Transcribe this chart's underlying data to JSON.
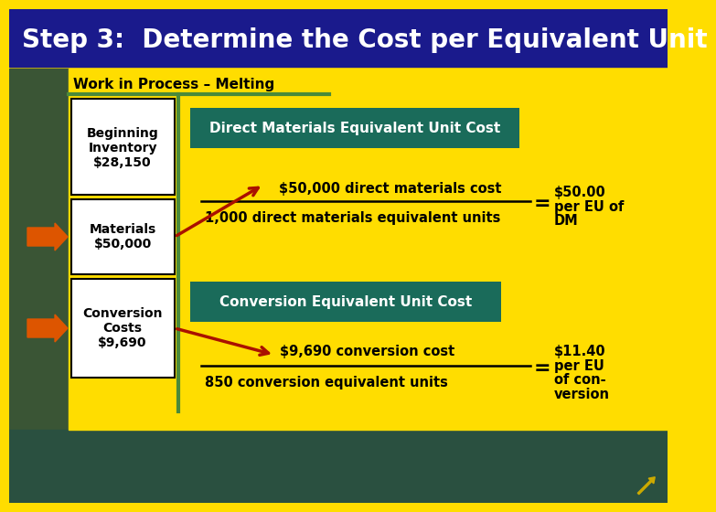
{
  "title": "Step 3:  Determine the Cost per Equivalent Unit",
  "title_bg": "#1a1a8c",
  "title_color": "#ffffff",
  "subtitle": "Work in Process – Melting",
  "subtitle_color": "#000000",
  "bg_color": "#ffdd00",
  "bg_left_color": "#3a5a30",
  "bg_bottom_color": "#2a5a50",
  "box1_label": "Beginning\nInventory\n$28,150",
  "box2_label": "Materials\n$50,000",
  "box3_label": "Conversion\nCosts\n$9,690",
  "box_bg": "#ffffff",
  "box_border": "#000000",
  "teal_bg": "#1a6b5a",
  "teal_text": "#ffffff",
  "dm_header": "Direct Materials Equivalent Unit Cost",
  "conv_header": "Conversion Equivalent Unit Cost",
  "dm_num": "$50,000 direct materials cost",
  "dm_den": "1,000 direct materials equivalent units",
  "conv_num": "$9,690 conversion cost",
  "conv_den": "850 conversion equivalent units",
  "dm_eq": "=",
  "dm_res1": "$50.00",
  "dm_res2": "per EU of",
  "dm_res3": "DM",
  "conv_eq": "=",
  "conv_res1": "$11.40",
  "conv_res2": "per EU",
  "conv_res3": "of con-",
  "conv_res4": "version",
  "red_arrow": "#aa1100",
  "orange_arrow": "#dd5500",
  "green_line": "#4a8a3a",
  "separator_color": "#4a8a3a"
}
